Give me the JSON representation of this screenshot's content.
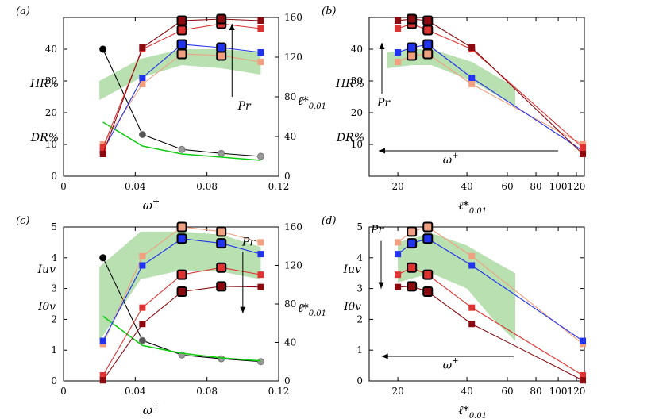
{
  "colors": {
    "blue": "#2233ee",
    "light": "#f0a080",
    "red": "#dd3333",
    "darkred": "#8b0a10",
    "black": "#000000",
    "gray": "#999999",
    "green_line": "#11cc11",
    "green_band": "#b8e0b0"
  },
  "chart_data": [
    {
      "panel": "(a)",
      "type": "line",
      "xscale": "linear",
      "xlim": [
        0,
        0.12
      ],
      "ylim": [
        0,
        50
      ],
      "y2lim": [
        0,
        160
      ],
      "xlabel": "ω+",
      "xticks": [
        "0",
        "0.04",
        "0.08",
        "0.12"
      ],
      "yticks": [
        "0",
        "10",
        "20",
        "30",
        "40"
      ],
      "y2label": "ℓ*0.01",
      "y2ticks": [
        "0",
        "40",
        "80",
        "120",
        "160"
      ],
      "annotations": [
        "HR%",
        "DR%",
        "Pr"
      ],
      "x": [
        0.022,
        0.044,
        0.066,
        0.088,
        0.11
      ],
      "series": [
        {
          "name": "Pr light",
          "values": [
            10,
            29,
            38.5,
            38,
            36
          ]
        },
        {
          "name": "Pr blue",
          "values": [
            8,
            31,
            41.5,
            40.5,
            39
          ]
        },
        {
          "name": "Pr red",
          "values": [
            9,
            40,
            46,
            48,
            46.5
          ]
        },
        {
          "name": "Pr darkred",
          "values": [
            7,
            40.5,
            49,
            49.5,
            49
          ]
        }
      ],
      "hollow_markers": [
        2,
        3
      ],
      "ell_values": [
        128,
        42,
        27,
        23,
        20
      ],
      "dr_values": [
        17,
        9.5,
        7,
        6,
        5
      ],
      "band": {
        "x": [
          0.02,
          0.043,
          0.066,
          0.088,
          0.11
        ],
        "low": [
          24,
          31,
          35,
          34,
          32
        ],
        "high": [
          30,
          37,
          40,
          40,
          39
        ]
      }
    },
    {
      "panel": "(b)",
      "type": "line",
      "xscale": "log",
      "xlim": [
        15,
        130
      ],
      "ylim": [
        0,
        50
      ],
      "xlabel": "ℓ*0.01",
      "xticks": [
        "20",
        "40",
        "60",
        "80",
        "100",
        "120"
      ],
      "yticks": [
        "10",
        "20",
        "30",
        "40"
      ],
      "annotations": [
        "HR%",
        "DR%",
        "Pr",
        "ω+"
      ],
      "x": [
        128,
        42,
        27,
        23,
        20
      ],
      "series": [
        {
          "name": "Pr light",
          "values": [
            10,
            29,
            38.5,
            38,
            36
          ]
        },
        {
          "name": "Pr blue",
          "values": [
            8,
            31,
            41.5,
            40.5,
            39
          ]
        },
        {
          "name": "Pr red",
          "values": [
            9,
            40,
            46,
            48,
            46.5
          ]
        },
        {
          "name": "Pr darkred",
          "values": [
            7,
            40.5,
            49,
            49.5,
            49
          ]
        }
      ],
      "hollow_markers": [
        2,
        3
      ],
      "band": {
        "x": [
          18,
          23,
          28,
          42,
          65
        ],
        "low": [
          34,
          35,
          35,
          30,
          22
        ],
        "high": [
          39,
          40,
          40,
          36,
          28
        ]
      }
    },
    {
      "panel": "(c)",
      "type": "line",
      "xscale": "linear",
      "xlim": [
        0,
        0.12
      ],
      "ylim": [
        0,
        5
      ],
      "y2lim": [
        0,
        160
      ],
      "xlabel": "ω+",
      "xticks": [
        "0",
        "0.04",
        "0.08",
        "0.12"
      ],
      "yticks": [
        "0",
        "1",
        "2",
        "3",
        "4",
        "5"
      ],
      "y2label": "ℓ*0.01",
      "y2ticks": [
        "0",
        "40",
        "80",
        "120",
        "160"
      ],
      "annotations": [
        "Iuv",
        "Iθv",
        "Pr"
      ],
      "x": [
        0.022,
        0.044,
        0.066,
        0.088,
        0.11
      ],
      "series": [
        {
          "name": "Pr light",
          "values": [
            1.2,
            4.05,
            5.0,
            4.85,
            4.5
          ]
        },
        {
          "name": "Pr blue",
          "values": [
            1.3,
            3.75,
            4.62,
            4.47,
            4.12
          ]
        },
        {
          "name": "Pr red",
          "values": [
            0.18,
            2.38,
            3.45,
            3.68,
            3.45
          ]
        },
        {
          "name": "Pr darkred",
          "values": [
            0.02,
            1.85,
            2.9,
            3.07,
            3.05
          ]
        }
      ],
      "hollow_markers": [
        2,
        3
      ],
      "ell_values": [
        128,
        42,
        27,
        23,
        20
      ],
      "green_values": [
        2.1,
        1.15,
        0.9,
        0.75,
        0.65
      ],
      "band": {
        "x": [
          0.02,
          0.043,
          0.066,
          0.088,
          0.11
        ],
        "low": [
          1.3,
          3.3,
          3.6,
          3.55,
          3.3
        ],
        "high": [
          3.7,
          4.85,
          4.85,
          4.75,
          4.35
        ]
      }
    },
    {
      "panel": "(d)",
      "type": "line",
      "xscale": "log",
      "xlim": [
        15,
        130
      ],
      "ylim": [
        0,
        5
      ],
      "xlabel": "ℓ*0.01",
      "xticks": [
        "20",
        "40",
        "60",
        "80",
        "100",
        "120"
      ],
      "yticks": [
        "0",
        "1",
        "2",
        "3",
        "4",
        "5"
      ],
      "annotations": [
        "Iuv",
        "Iθv",
        "Pr",
        "ω+"
      ],
      "x": [
        128,
        42,
        27,
        23,
        20
      ],
      "series": [
        {
          "name": "Pr light",
          "values": [
            1.2,
            4.05,
            5.0,
            4.85,
            4.5
          ]
        },
        {
          "name": "Pr blue",
          "values": [
            1.3,
            3.75,
            4.62,
            4.47,
            4.12
          ]
        },
        {
          "name": "Pr red",
          "values": [
            0.18,
            2.38,
            3.45,
            3.68,
            3.45
          ]
        },
        {
          "name": "Pr darkred",
          "values": [
            0.02,
            1.85,
            2.9,
            3.07,
            3.05
          ]
        }
      ],
      "hollow_markers": [
        2,
        3
      ],
      "band": {
        "x": [
          20,
          28,
          40,
          52,
          65
        ],
        "low": [
          3.2,
          3.5,
          3.0,
          2.0,
          1.3
        ],
        "high": [
          4.5,
          4.8,
          4.4,
          3.9,
          3.5
        ]
      }
    }
  ]
}
